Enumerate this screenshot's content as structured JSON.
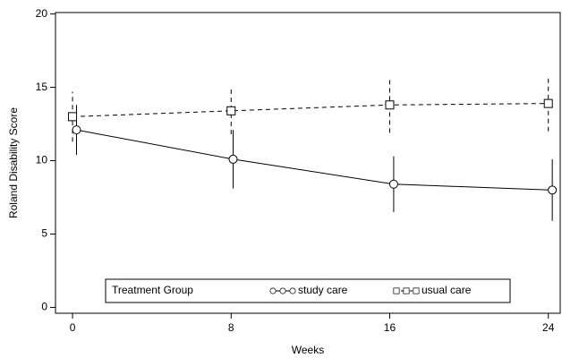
{
  "chart_data": {
    "type": "line",
    "x_label": "Weeks",
    "y_label": "Roland Disability Score",
    "xlim": [
      -0.86,
      24.6
    ],
    "xticks": [
      0,
      8,
      16,
      24
    ],
    "ylim": [
      -0.4,
      20.1
    ],
    "yticks": [
      0,
      5,
      10,
      15,
      20
    ],
    "legend_title": "Treatment Group",
    "series": [
      {
        "name": "study care",
        "color": "#000000",
        "dashed": false,
        "marker": "circle",
        "x": [
          0.2,
          8.1,
          16.2,
          24.2
        ],
        "values": [
          12.1,
          10.1,
          8.4,
          8.0
        ],
        "errors": [
          1.7,
          2.0,
          1.9,
          2.1
        ]
      },
      {
        "name": "usual care",
        "color": "#000000",
        "dashed": true,
        "marker": "square",
        "x": [
          0,
          8,
          16,
          24
        ],
        "values": [
          13.0,
          13.4,
          13.8,
          13.9
        ],
        "errors": [
          1.7,
          1.6,
          1.9,
          1.9
        ]
      }
    ]
  }
}
